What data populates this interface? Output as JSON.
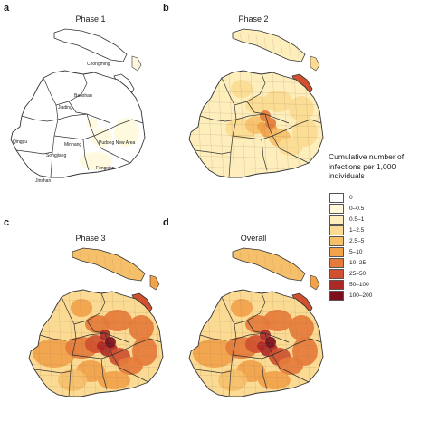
{
  "panels": [
    {
      "letter": "a",
      "title": "Phase 1"
    },
    {
      "letter": "b",
      "title": "Phase 2"
    },
    {
      "letter": "c",
      "title": "Phase 3"
    },
    {
      "letter": "d",
      "title": "Overall"
    }
  ],
  "district_labels": [
    "Chongming",
    "Baoshan",
    "Jiading",
    "Qingpu",
    "Minhang",
    "Pudong New Area",
    "Songjiang",
    "Fengxian",
    "Jinshan"
  ],
  "legend": {
    "title": "Cumulative number of infections per 1,000 individuals",
    "items": [
      {
        "label": "0",
        "color": "#ffffff"
      },
      {
        "label": "0–0.5",
        "color": "#fff8dc"
      },
      {
        "label": "0.5–1",
        "color": "#fdeebc"
      },
      {
        "label": "1–2.5",
        "color": "#fbdb93"
      },
      {
        "label": "2.5–5",
        "color": "#f6c06b"
      },
      {
        "label": "5–10",
        "color": "#f1a24a"
      },
      {
        "label": "10–25",
        "color": "#e57b3a"
      },
      {
        "label": "25–50",
        "color": "#d0502f"
      },
      {
        "label": "50–100",
        "color": "#ac2a26"
      },
      {
        "label": "100–200",
        "color": "#7d0f1d"
      }
    ]
  }
}
